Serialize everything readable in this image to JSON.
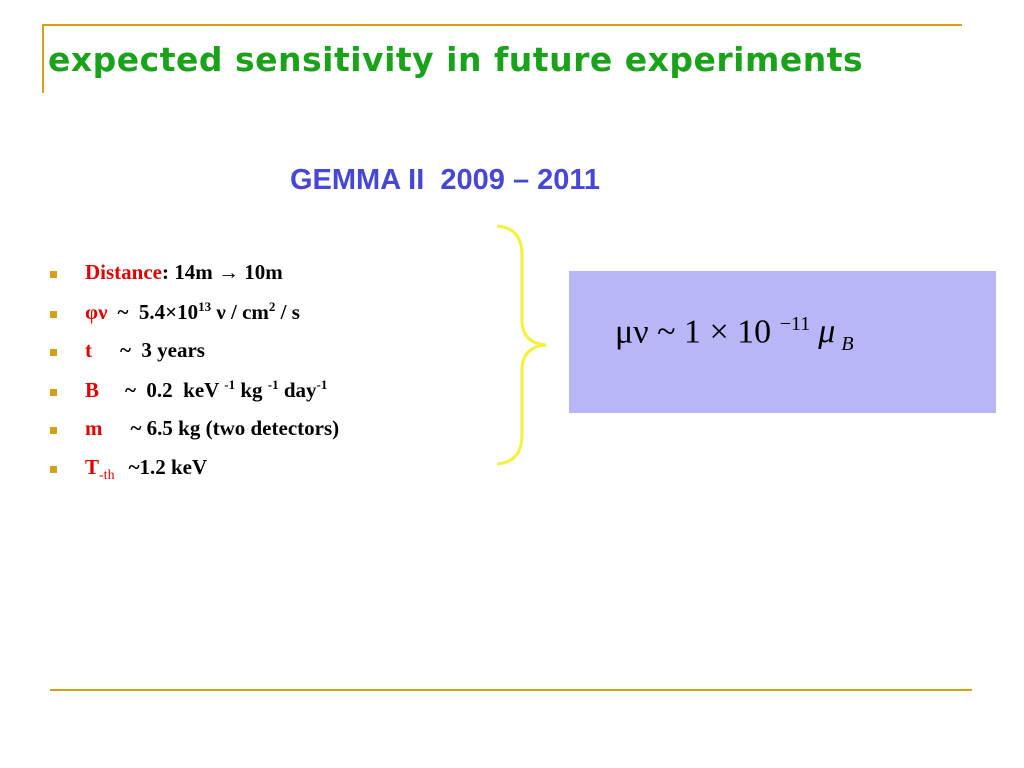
{
  "header": {
    "title": "expected sensitivity in future experiments"
  },
  "subtitle": "GEMMA II  2009 – 2011",
  "bullets": [
    {
      "label": "Distance",
      "parts": [
        ": 14m → 10m"
      ]
    },
    {
      "label": "φν",
      "parts": [
        "~  5.4×10",
        "13",
        " ν / cm",
        "2",
        " / s"
      ]
    },
    {
      "label": "t",
      "parts": [
        "~  3 years"
      ]
    },
    {
      "label": "B",
      "parts": [
        "~  0.2  keV ",
        "-1",
        " kg ",
        "-1",
        " day",
        "-1"
      ]
    },
    {
      "label": "m",
      "parts": [
        "~ 6.5 kg (two detectors)"
      ]
    },
    {
      "label": "T",
      "parts": [
        "-th",
        "~1.2 keV"
      ]
    }
  ],
  "formula": {
    "parts": [
      "μ",
      "ν",
      " ~ 1 × 10 ",
      "−11",
      "μ",
      "B"
    ]
  }
}
